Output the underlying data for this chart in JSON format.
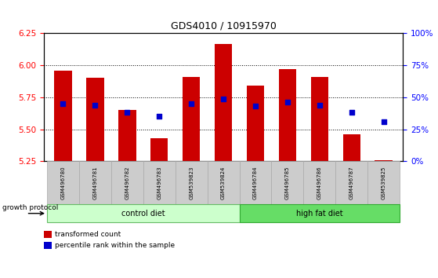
{
  "title": "GDS4010 / 10915970",
  "samples": [
    "GSM496780",
    "GSM496781",
    "GSM496782",
    "GSM496783",
    "GSM539823",
    "GSM539824",
    "GSM496784",
    "GSM496785",
    "GSM496786",
    "GSM496787",
    "GSM539825"
  ],
  "transformed_count": [
    5.96,
    5.9,
    5.65,
    5.43,
    5.91,
    6.17,
    5.84,
    5.97,
    5.91,
    5.46,
    5.26
  ],
  "percentile_rank_vals": [
    5.7,
    5.69,
    5.63,
    5.6,
    5.7,
    5.74,
    5.68,
    5.71,
    5.69,
    5.63,
    5.56
  ],
  "bar_color": "#cc0000",
  "dot_color": "#0000cc",
  "bar_bottom": 5.25,
  "ylim": [
    5.25,
    6.25
  ],
  "yticks_left": [
    5.25,
    5.5,
    5.75,
    6.0,
    6.25
  ],
  "yticks_right_pct": [
    0,
    25,
    50,
    75,
    100
  ],
  "control_bg": "#ccffcc",
  "control_border": "#66bb66",
  "highfat_bg": "#66dd66",
  "highfat_border": "#33aa33",
  "sample_label_bg": "#cccccc",
  "sample_label_border": "#aaaaaa",
  "n_control": 6,
  "legend_red_label": "transformed count",
  "legend_blue_label": "percentile rank within the sample",
  "growth_protocol_label": "growth protocol"
}
